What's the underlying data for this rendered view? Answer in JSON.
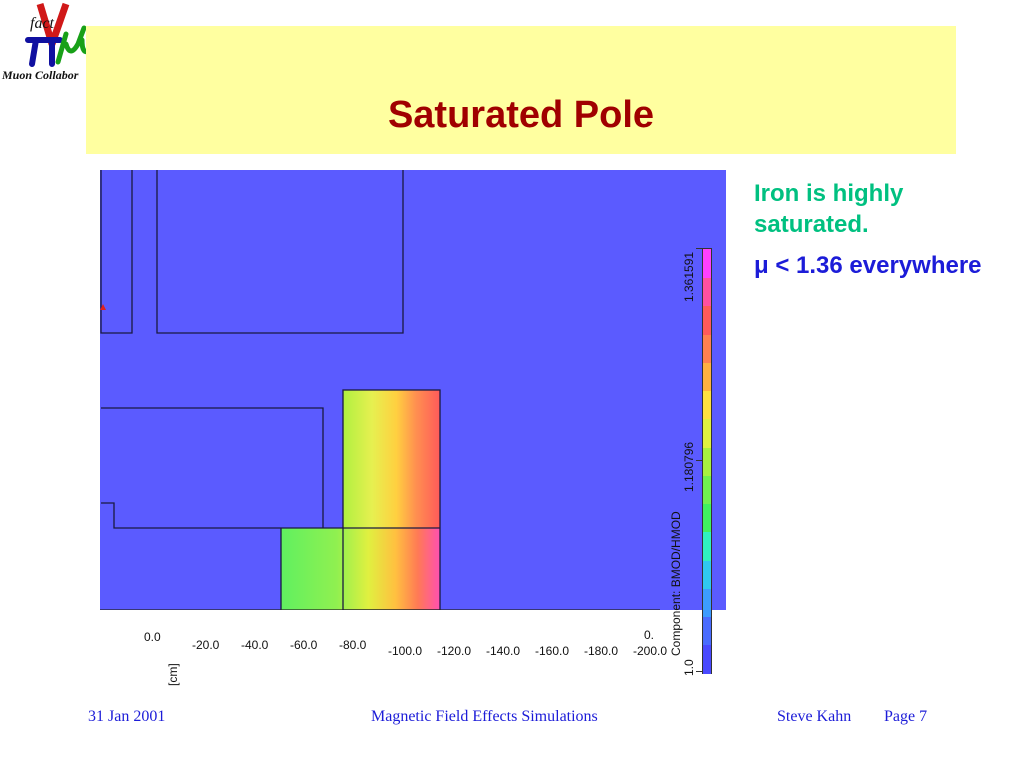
{
  "logo": {
    "word_fact": "fact",
    "caption": "Muon Collabor",
    "icon": "nufact-muon-logo",
    "colors": {
      "nu": "#d01818",
      "pi": "#1010a0",
      "mu": "#18a018"
    }
  },
  "slide": {
    "title": "Saturated Pole",
    "title_color": "#a00000",
    "band_color": "#ffffa0"
  },
  "figure": {
    "background_color": "#5b5bff",
    "x_axis_ticks": [
      "0.0",
      "-20.0",
      "-40.0",
      "-60.0",
      "-80.0",
      "-100.0",
      "-120.0",
      "-140.0",
      "-160.0",
      "-180.0",
      "-200.0",
      "0."
    ],
    "x_axis_unit": "[cm]",
    "legend": {
      "component_label": "Component: BMOD/HMOD",
      "max_value": "1.361591",
      "mid_value": "1.180796",
      "min_value": "1.0",
      "colors": [
        "#4a4aff",
        "#4a6cff",
        "#3c9cff",
        "#30c8f0",
        "#30f0c0",
        "#40f060",
        "#70f050",
        "#a8f040",
        "#e0f040",
        "#ffe040",
        "#ffb040",
        "#ff8050",
        "#ff5a5a",
        "#ff50a0",
        "#ff40ff"
      ]
    }
  },
  "notes": {
    "line1": "Iron is highly saturated.",
    "line2": "μ < 1.36 everywhere"
  },
  "footer": {
    "date": "31 Jan 2001",
    "center": "Magnetic Field Effects Simulations",
    "author": "Steve Kahn",
    "page": "Page 7"
  }
}
